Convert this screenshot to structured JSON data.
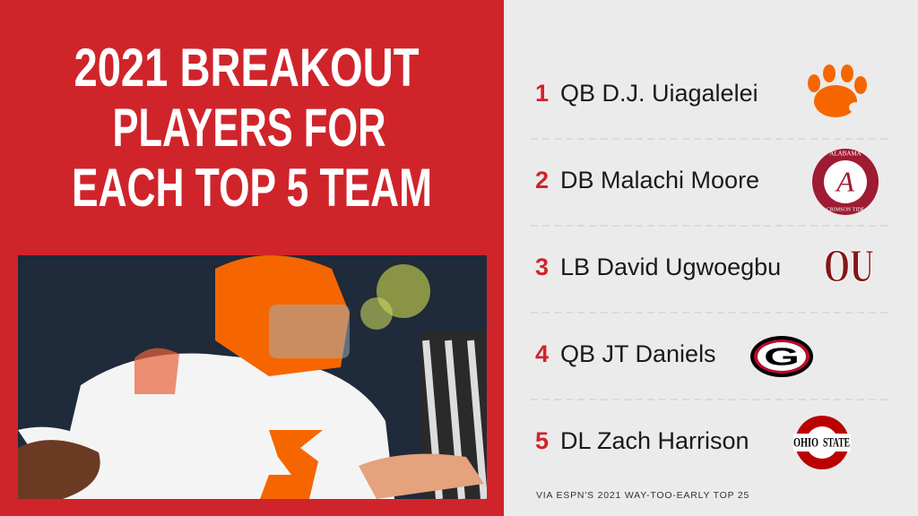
{
  "header": {
    "title_lines": [
      "2021 BREAKOUT",
      "PLAYERS FOR",
      "EACH TOP 5 TEAM"
    ]
  },
  "list": [
    {
      "rank": "1",
      "player": "QB D.J. Uiagalelei"
    },
    {
      "rank": "2",
      "player": "DB Malachi Moore",
      "logo_text": [
        "A",
        "ALABAMA",
        "CRIMSON TIDE"
      ]
    },
    {
      "rank": "3",
      "player": "LB David Ugwoegbu",
      "logo_text": [
        "OU"
      ]
    },
    {
      "rank": "4",
      "player": "QB JT Daniels",
      "logo_text": [
        "G"
      ]
    },
    {
      "rank": "5",
      "player": "DL Zach Harrison",
      "logo_text": [
        "OHIO",
        "STATE"
      ]
    }
  ],
  "footer": {
    "source": "VIA ESPN'S 2021 WAY-TOO-EARLY TOP 25"
  }
}
